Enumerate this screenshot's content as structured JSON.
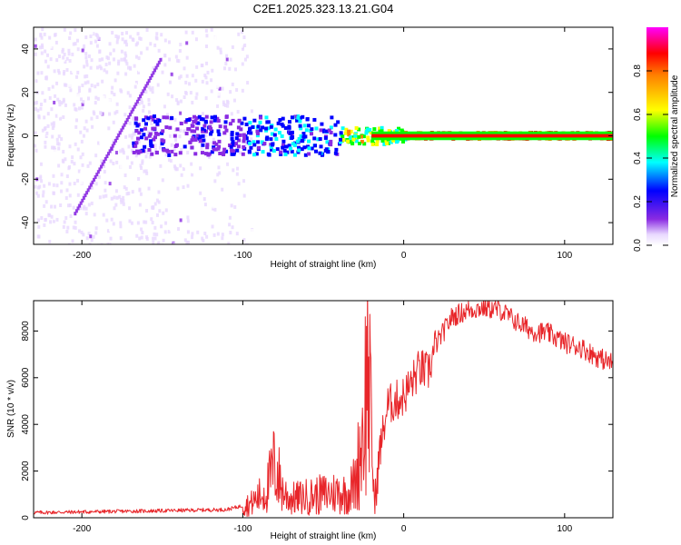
{
  "title": "C2E1.2025.323.13.21.G04",
  "chart_data": [
    {
      "type": "heatmap",
      "xlabel": "Height of straight line (km)",
      "ylabel": "Frequency (Hz)",
      "xlim": [
        -230,
        130
      ],
      "ylim": [
        -50,
        50
      ],
      "xticks": [
        -200,
        -100,
        0,
        100
      ],
      "yticks": [
        -40,
        -20,
        0,
        20,
        40
      ],
      "colorbar": {
        "label": "Normalized spectral amplitude",
        "range": [
          0,
          1
        ],
        "ticks": [
          "0.0",
          "0.2",
          "0.4",
          "0.6",
          "0.8"
        ],
        "colors": [
          "#ffffff",
          "#e8d8ff",
          "#8a2be2",
          "#0000ff",
          "#00ffff",
          "#00ff00",
          "#ffff00",
          "#ff8000",
          "#ff0000",
          "#ff00ff"
        ]
      },
      "features": [
        {
          "description": "broadband scatter",
          "x_range": [
            -230,
            -100
          ],
          "freq_range": [
            -50,
            50
          ]
        },
        {
          "description": "main band near 0 Hz",
          "x_range": [
            -170,
            130
          ],
          "center_freq": 0
        }
      ]
    },
    {
      "type": "line",
      "xlabel": "Height of straight line (km)",
      "ylabel": "SNR (10 * v/v)",
      "xlim": [
        -230,
        130
      ],
      "ylim": [
        0,
        9300
      ],
      "xticks": [
        -200,
        -100,
        0,
        100
      ],
      "yticks": [
        0,
        2000,
        4000,
        6000,
        8000
      ],
      "color": "#e8262a",
      "x": [
        -230,
        -200,
        -150,
        -110,
        -95,
        -85,
        -80,
        -75,
        -70,
        -60,
        -50,
        -40,
        -35,
        -30,
        -25,
        -22,
        -20,
        -18,
        -15,
        -10,
        -5,
        0,
        5,
        10,
        15,
        20,
        25,
        30,
        40,
        50,
        60,
        70,
        80,
        90,
        100,
        110,
        120,
        130
      ],
      "y": [
        220,
        250,
        300,
        350,
        600,
        1200,
        2300,
        1100,
        800,
        900,
        1000,
        1100,
        1000,
        1500,
        4000,
        7000,
        3000,
        500,
        2800,
        4800,
        5000,
        5200,
        5800,
        6400,
        6200,
        7400,
        8000,
        8600,
        8900,
        9000,
        8900,
        8400,
        8000,
        7900,
        7500,
        7300,
        6900,
        6600
      ]
    }
  ]
}
